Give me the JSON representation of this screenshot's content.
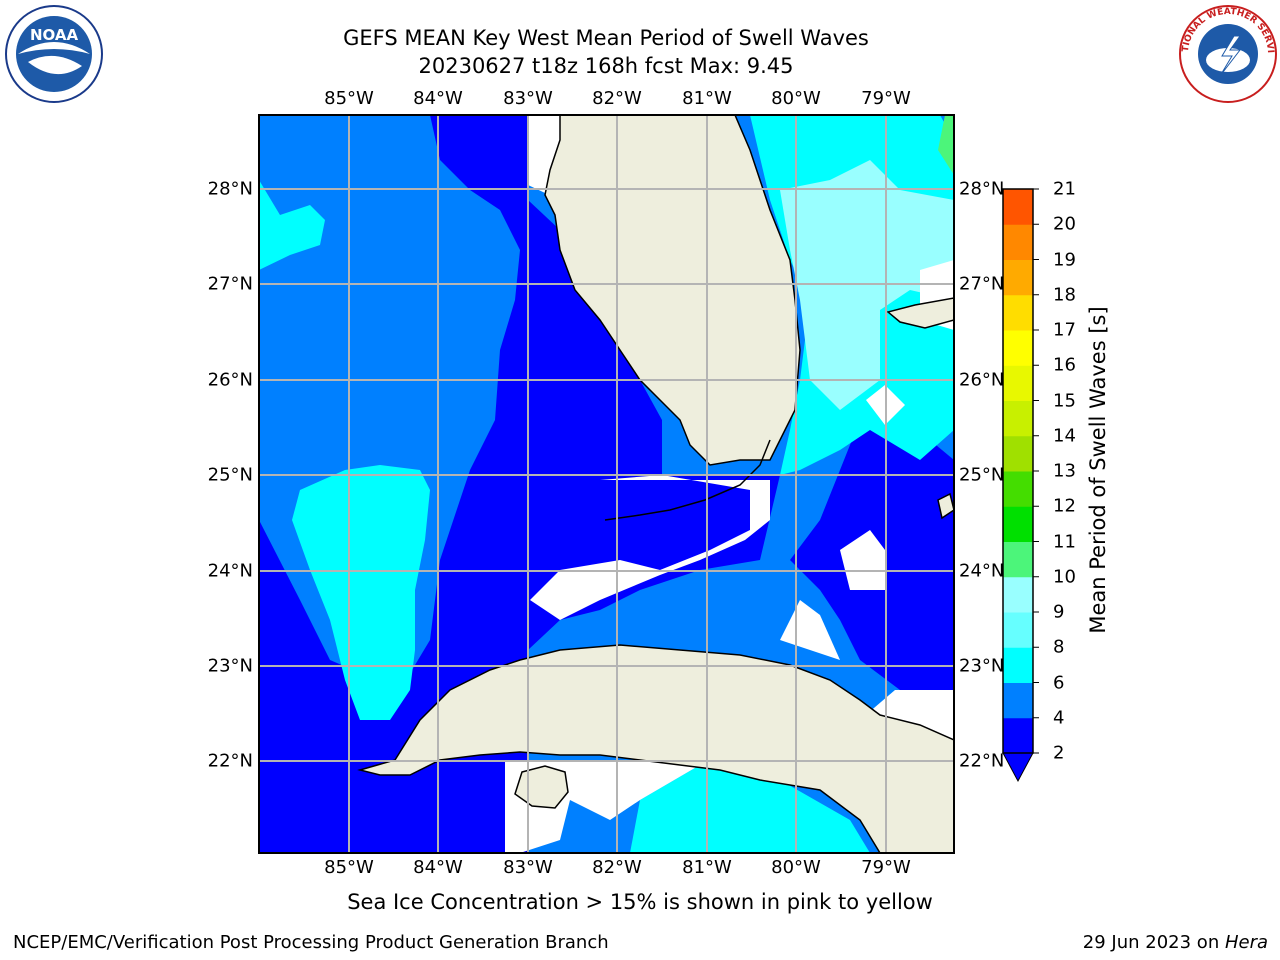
{
  "header": {
    "title_line1": "GEFS MEAN Key West Mean Period of Swell Waves",
    "title_line2": "20230627 t18z 168h fcst   Max: 9.45"
  },
  "logos": {
    "left": {
      "icon": "noaa-logo-icon",
      "text": "NOAA"
    },
    "right": {
      "icon": "national-weather-service-logo-icon",
      "text": "NATIONAL WEATHER SERVICE"
    }
  },
  "map": {
    "longitude_labels": [
      "85°W",
      "84°W",
      "83°W",
      "82°W",
      "81°W",
      "80°W",
      "79°W"
    ],
    "latitude_labels": [
      "28°N",
      "27°N",
      "26°N",
      "25°N",
      "24°N",
      "23°N",
      "22°N"
    ],
    "gridlines": true,
    "colors": {
      "land": "#eeeedd",
      "band_2_4": "#0000ff",
      "band_4_6": "#0080ff",
      "band_6_8": "#00ffff",
      "band_8_9": "#99ffff",
      "band_9_10": "#4cf57a",
      "no_data": "#ffffff"
    }
  },
  "colorbar": {
    "label": "Mean Period of Swell Waves [s]",
    "ticks": [
      "2",
      "4",
      "6",
      "8",
      "9",
      "10",
      "11",
      "12",
      "13",
      "14",
      "15",
      "16",
      "17",
      "18",
      "19",
      "20",
      "21"
    ],
    "colors": [
      "#0000ff",
      "#0080ff",
      "#00ffff",
      "#66ffff",
      "#99ffff",
      "#4cf57a",
      "#00e000",
      "#44dd00",
      "#a0e000",
      "#c8f000",
      "#e8f800",
      "#ffff00",
      "#ffdd00",
      "#ffaa00",
      "#ff8800",
      "#ff5500",
      "#ff2200",
      "#ff0000"
    ],
    "extend_color": "#0000ff"
  },
  "note": "Sea Ice Concentration > 15% is shown in pink to yellow",
  "footer": {
    "left": "NCEP/EMC/Verification Post Processing Product Generation Branch",
    "date": "29 Jun 2023 on ",
    "machine": "Hera"
  }
}
